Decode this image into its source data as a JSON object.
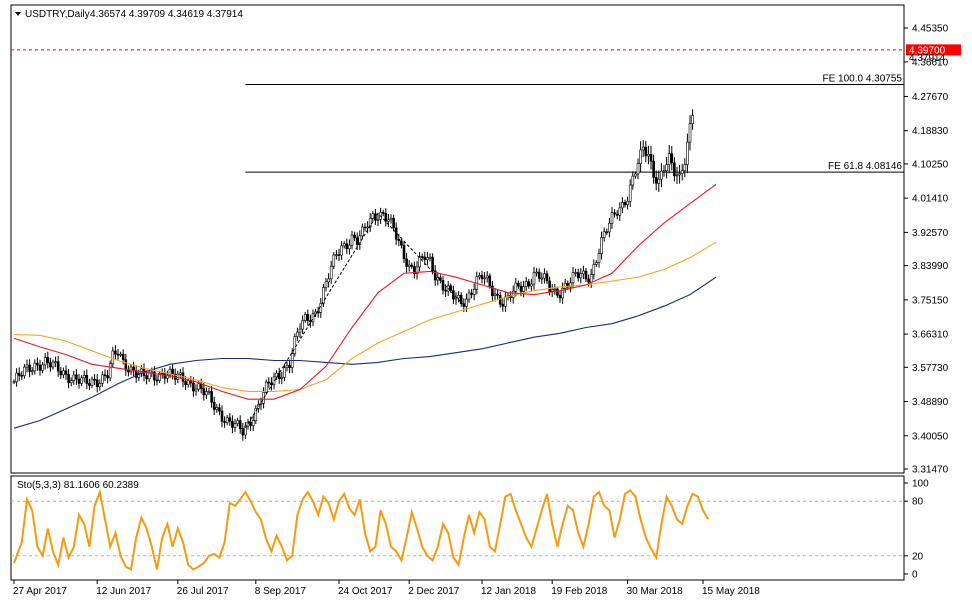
{
  "header": {
    "symbol": "USDTRY,Daily",
    "ohlc": "4.36574 4.39709 4.34619 4.37914"
  },
  "price_badge": {
    "value": "4.39700",
    "close": "4.37914",
    "color": "#ff0000"
  },
  "stoch_header": "Sto(5,3,3) 81.1606 60.2389",
  "colors": {
    "candles": "#000000",
    "ma_fast": "#e8192c",
    "ma_mid": "#f5a623",
    "ma_slow": "#1f2a7a",
    "stoch": "#f39c12",
    "current_price_line": "#ff0000"
  },
  "chart_data": [
    {
      "type": "candlestick",
      "y_ticks": [
        "4.45350",
        "4.36610",
        "4.27670",
        "4.18830",
        "4.10250",
        "4.01410",
        "3.92570",
        "3.83990",
        "3.75150",
        "3.66310",
        "3.57730",
        "3.48890",
        "3.40050",
        "3.31470"
      ],
      "y_tick_values": [
        4.4535,
        4.3661,
        4.2767,
        4.1883,
        4.1025,
        4.0141,
        3.9257,
        3.8399,
        3.7515,
        3.6631,
        3.5773,
        3.4889,
        3.4005,
        3.3147
      ],
      "ylim": [
        3.3147,
        4.4535
      ],
      "x_ticks": [
        "27 Apr 2017",
        "12 Jun 2017",
        "26 Jul 2017",
        "8 Sep 2017",
        "24 Oct 2017",
        "2 Dec 2017",
        "12 Jan 2018",
        "19 Feb 2018",
        "30 Mar 2018",
        "15 May 2018"
      ],
      "x_tick_index": [
        0,
        32,
        63,
        93,
        125,
        152,
        180,
        207,
        236,
        265
      ],
      "bars": 262,
      "price_path": [
        [
          0,
          3.54
        ],
        [
          4,
          3.565
        ],
        [
          8,
          3.585
        ],
        [
          12,
          3.59
        ],
        [
          16,
          3.575
        ],
        [
          20,
          3.56
        ],
        [
          24,
          3.545
        ],
        [
          28,
          3.535
        ],
        [
          32,
          3.545
        ],
        [
          36,
          3.56
        ],
        [
          38,
          3.6
        ],
        [
          40,
          3.615
        ],
        [
          42,
          3.59
        ],
        [
          46,
          3.57
        ],
        [
          50,
          3.55
        ],
        [
          54,
          3.555
        ],
        [
          58,
          3.565
        ],
        [
          62,
          3.55
        ],
        [
          66,
          3.545
        ],
        [
          70,
          3.53
        ],
        [
          74,
          3.505
        ],
        [
          78,
          3.47
        ],
        [
          82,
          3.44
        ],
        [
          86,
          3.42
        ],
        [
          88,
          3.41
        ],
        [
          90,
          3.43
        ],
        [
          92,
          3.455
        ],
        [
          94,
          3.48
        ],
        [
          96,
          3.51
        ],
        [
          98,
          3.53
        ],
        [
          102,
          3.56
        ],
        [
          106,
          3.59
        ],
        [
          108,
          3.64
        ],
        [
          110,
          3.68
        ],
        [
          112,
          3.7
        ],
        [
          114,
          3.71
        ],
        [
          116,
          3.72
        ],
        [
          118,
          3.75
        ],
        [
          120,
          3.79
        ],
        [
          122,
          3.83
        ],
        [
          124,
          3.87
        ],
        [
          126,
          3.89
        ],
        [
          128,
          3.9
        ],
        [
          130,
          3.91
        ],
        [
          132,
          3.9
        ],
        [
          134,
          3.92
        ],
        [
          136,
          3.95
        ],
        [
          138,
          3.97
        ],
        [
          140,
          3.975
        ],
        [
          142,
          3.97
        ],
        [
          144,
          3.955
        ],
        [
          146,
          3.93
        ],
        [
          148,
          3.9
        ],
        [
          150,
          3.87
        ],
        [
          152,
          3.84
        ],
        [
          154,
          3.83
        ],
        [
          156,
          3.845
        ],
        [
          158,
          3.86
        ],
        [
          160,
          3.85
        ],
        [
          162,
          3.82
        ],
        [
          164,
          3.8
        ],
        [
          166,
          3.78
        ],
        [
          168,
          3.765
        ],
        [
          170,
          3.75
        ],
        [
          172,
          3.745
        ],
        [
          174,
          3.755
        ],
        [
          176,
          3.78
        ],
        [
          178,
          3.8
        ],
        [
          180,
          3.81
        ],
        [
          182,
          3.795
        ],
        [
          184,
          3.775
        ],
        [
          186,
          3.76
        ],
        [
          188,
          3.75
        ],
        [
          190,
          3.755
        ],
        [
          192,
          3.77
        ],
        [
          194,
          3.78
        ],
        [
          196,
          3.785
        ],
        [
          198,
          3.8
        ],
        [
          200,
          3.82
        ],
        [
          202,
          3.815
        ],
        [
          204,
          3.8
        ],
        [
          206,
          3.78
        ],
        [
          208,
          3.77
        ],
        [
          210,
          3.775
        ],
        [
          212,
          3.79
        ],
        [
          214,
          3.8
        ],
        [
          216,
          3.81
        ],
        [
          218,
          3.815
        ],
        [
          220,
          3.81
        ],
        [
          222,
          3.82
        ],
        [
          224,
          3.86
        ],
        [
          226,
          3.9
        ],
        [
          228,
          3.93
        ],
        [
          230,
          3.96
        ],
        [
          232,
          3.985
        ],
        [
          234,
          4.0
        ],
        [
          236,
          4.02
        ],
        [
          238,
          4.06
        ],
        [
          240,
          4.1
        ],
        [
          242,
          4.14
        ],
        [
          244,
          4.13
        ],
        [
          246,
          4.08
        ],
        [
          248,
          4.06
        ],
        [
          250,
          4.09
        ],
        [
          252,
          4.11
        ],
        [
          254,
          4.08
        ],
        [
          256,
          4.07
        ],
        [
          258,
          4.12
        ],
        [
          260,
          4.2
        ],
        [
          262,
          4.27
        ],
        [
          264,
          4.3
        ],
        [
          266,
          4.32
        ],
        [
          268,
          4.34
        ],
        [
          270,
          4.37
        ],
        [
          271,
          4.38
        ]
      ],
      "ma_fast_path": [
        [
          0,
          3.652
        ],
        [
          10,
          3.63
        ],
        [
          20,
          3.61
        ],
        [
          30,
          3.585
        ],
        [
          40,
          3.575
        ],
        [
          50,
          3.565
        ],
        [
          60,
          3.555
        ],
        [
          70,
          3.54
        ],
        [
          80,
          3.515
        ],
        [
          90,
          3.495
        ],
        [
          100,
          3.495
        ],
        [
          110,
          3.52
        ],
        [
          120,
          3.58
        ],
        [
          130,
          3.68
        ],
        [
          140,
          3.77
        ],
        [
          150,
          3.82
        ],
        [
          160,
          3.825
        ],
        [
          170,
          3.81
        ],
        [
          180,
          3.79
        ],
        [
          190,
          3.77
        ],
        [
          200,
          3.765
        ],
        [
          210,
          3.775
        ],
        [
          220,
          3.79
        ],
        [
          230,
          3.82
        ],
        [
          240,
          3.89
        ],
        [
          250,
          3.95
        ],
        [
          260,
          4.0
        ],
        [
          270,
          4.05
        ]
      ],
      "ma_mid_path": [
        [
          0,
          3.662
        ],
        [
          10,
          3.66
        ],
        [
          20,
          3.645
        ],
        [
          30,
          3.62
        ],
        [
          40,
          3.595
        ],
        [
          50,
          3.575
        ],
        [
          60,
          3.56
        ],
        [
          70,
          3.545
        ],
        [
          80,
          3.525
        ],
        [
          90,
          3.515
        ],
        [
          100,
          3.515
        ],
        [
          110,
          3.52
        ],
        [
          120,
          3.545
        ],
        [
          130,
          3.6
        ],
        [
          140,
          3.64
        ],
        [
          150,
          3.67
        ],
        [
          160,
          3.7
        ],
        [
          170,
          3.72
        ],
        [
          180,
          3.74
        ],
        [
          190,
          3.76
        ],
        [
          200,
          3.775
        ],
        [
          210,
          3.785
        ],
        [
          220,
          3.79
        ],
        [
          230,
          3.8
        ],
        [
          240,
          3.81
        ],
        [
          250,
          3.83
        ],
        [
          260,
          3.86
        ],
        [
          270,
          3.9
        ]
      ],
      "ma_slow_path": [
        [
          0,
          3.42
        ],
        [
          10,
          3.44
        ],
        [
          20,
          3.47
        ],
        [
          30,
          3.5
        ],
        [
          40,
          3.535
        ],
        [
          50,
          3.565
        ],
        [
          60,
          3.585
        ],
        [
          70,
          3.595
        ],
        [
          80,
          3.6
        ],
        [
          90,
          3.6
        ],
        [
          100,
          3.595
        ],
        [
          110,
          3.595
        ],
        [
          120,
          3.59
        ],
        [
          130,
          3.585
        ],
        [
          140,
          3.59
        ],
        [
          150,
          3.6
        ],
        [
          160,
          3.605
        ],
        [
          170,
          3.615
        ],
        [
          180,
          3.625
        ],
        [
          190,
          3.64
        ],
        [
          200,
          3.655
        ],
        [
          210,
          3.665
        ],
        [
          220,
          3.68
        ],
        [
          230,
          3.69
        ],
        [
          240,
          3.71
        ],
        [
          250,
          3.735
        ],
        [
          260,
          3.765
        ],
        [
          270,
          3.81
        ]
      ],
      "zigzag": [
        [
          88,
          3.41
        ],
        [
          140,
          3.975
        ],
        [
          172,
          3.745
        ]
      ],
      "horizontal_levels": [
        {
          "label": "FE 100.0 4.30755",
          "value": 4.30755,
          "from_index": 89
        },
        {
          "label": "FE 61.8 4.08146",
          "value": 4.08146,
          "from_index": 89
        }
      ],
      "current_price": 4.397
    },
    {
      "type": "line",
      "y_ticks": [
        "100",
        "80",
        "20",
        "0"
      ],
      "y_tick_values": [
        100,
        80,
        20,
        0
      ],
      "ylim": [
        -5,
        105
      ],
      "levels": [
        80,
        20
      ],
      "stoch_path": [
        [
          0,
          12
        ],
        [
          3,
          35
        ],
        [
          5,
          82
        ],
        [
          7,
          70
        ],
        [
          9,
          30
        ],
        [
          11,
          20
        ],
        [
          13,
          50
        ],
        [
          15,
          25
        ],
        [
          17,
          10
        ],
        [
          19,
          40
        ],
        [
          21,
          18
        ],
        [
          23,
          30
        ],
        [
          25,
          65
        ],
        [
          27,
          55
        ],
        [
          29,
          30
        ],
        [
          31,
          75
        ],
        [
          33,
          90
        ],
        [
          35,
          60
        ],
        [
          37,
          30
        ],
        [
          39,
          45
        ],
        [
          41,
          20
        ],
        [
          43,
          8
        ],
        [
          45,
          5
        ],
        [
          47,
          40
        ],
        [
          49,
          62
        ],
        [
          51,
          50
        ],
        [
          53,
          30
        ],
        [
          55,
          5
        ],
        [
          57,
          40
        ],
        [
          59,
          55
        ],
        [
          61,
          30
        ],
        [
          63,
          50
        ],
        [
          65,
          35
        ],
        [
          67,
          10
        ],
        [
          69,
          5
        ],
        [
          71,
          8
        ],
        [
          73,
          12
        ],
        [
          75,
          20
        ],
        [
          77,
          22
        ],
        [
          79,
          18
        ],
        [
          81,
          35
        ],
        [
          83,
          78
        ],
        [
          85,
          75
        ],
        [
          87,
          82
        ],
        [
          89,
          90
        ],
        [
          91,
          80
        ],
        [
          93,
          68
        ],
        [
          95,
          60
        ],
        [
          97,
          38
        ],
        [
          99,
          25
        ],
        [
          101,
          42
        ],
        [
          103,
          30
        ],
        [
          105,
          15
        ],
        [
          107,
          20
        ],
        [
          109,
          65
        ],
        [
          111,
          82
        ],
        [
          113,
          90
        ],
        [
          115,
          80
        ],
        [
          117,
          65
        ],
        [
          119,
          85
        ],
        [
          121,
          78
        ],
        [
          123,
          60
        ],
        [
          125,
          80
        ],
        [
          127,
          88
        ],
        [
          129,
          72
        ],
        [
          131,
          65
        ],
        [
          133,
          82
        ],
        [
          135,
          45
        ],
        [
          137,
          25
        ],
        [
          139,
          30
        ],
        [
          141,
          70
        ],
        [
          143,
          55
        ],
        [
          145,
          30
        ],
        [
          147,
          25
        ],
        [
          149,
          15
        ],
        [
          151,
          40
        ],
        [
          153,
          68
        ],
        [
          155,
          50
        ],
        [
          157,
          30
        ],
        [
          159,
          20
        ],
        [
          161,
          15
        ],
        [
          163,
          30
        ],
        [
          165,
          55
        ],
        [
          167,
          45
        ],
        [
          169,
          18
        ],
        [
          171,
          10
        ],
        [
          173,
          40
        ],
        [
          175,
          65
        ],
        [
          177,
          45
        ],
        [
          179,
          68
        ],
        [
          181,
          60
        ],
        [
          183,
          30
        ],
        [
          185,
          25
        ],
        [
          187,
          55
        ],
        [
          189,
          85
        ],
        [
          191,
          88
        ],
        [
          193,
          70
        ],
        [
          195,
          55
        ],
        [
          197,
          40
        ],
        [
          199,
          30
        ],
        [
          201,
          50
        ],
        [
          203,
          70
        ],
        [
          205,
          88
        ],
        [
          207,
          55
        ],
        [
          209,
          30
        ],
        [
          211,
          55
        ],
        [
          213,
          75
        ],
        [
          215,
          70
        ],
        [
          217,
          45
        ],
        [
          219,
          30
        ],
        [
          221,
          55
        ],
        [
          223,
          85
        ],
        [
          225,
          90
        ],
        [
          227,
          75
        ],
        [
          229,
          70
        ],
        [
          231,
          40
        ],
        [
          233,
          60
        ],
        [
          235,
          88
        ],
        [
          237,
          92
        ],
        [
          239,
          85
        ],
        [
          241,
          60
        ],
        [
          243,
          40
        ],
        [
          245,
          28
        ],
        [
          247,
          18
        ],
        [
          249,
          55
        ],
        [
          251,
          85
        ],
        [
          253,
          75
        ],
        [
          255,
          60
        ],
        [
          257,
          55
        ],
        [
          259,
          75
        ],
        [
          261,
          88
        ],
        [
          263,
          85
        ],
        [
          265,
          70
        ],
        [
          267,
          60
        ]
      ]
    }
  ]
}
